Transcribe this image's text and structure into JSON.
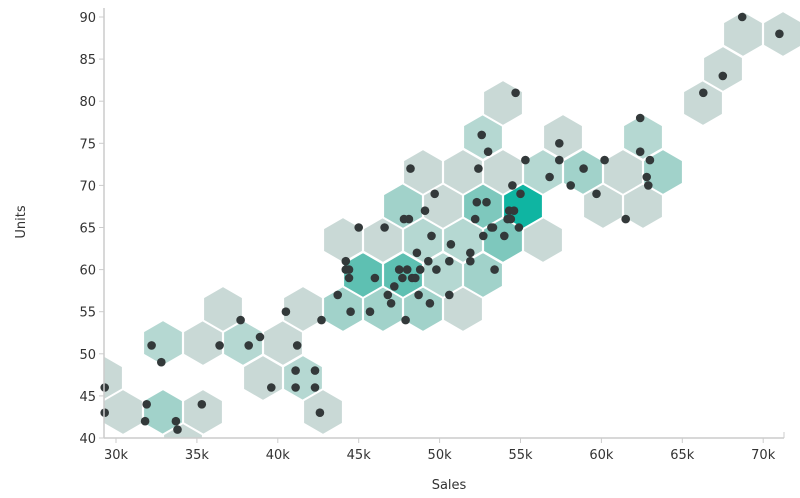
{
  "chart_data": {
    "type": "hexbin",
    "title": "",
    "xlabel": "Sales",
    "ylabel": "Units",
    "xlim": [
      29200,
      71300
    ],
    "ylim": [
      40,
      91
    ],
    "x_ticks": [
      30000,
      35000,
      40000,
      45000,
      50000,
      55000,
      60000,
      65000,
      70000
    ],
    "x_tick_labels": [
      "30k",
      "35k",
      "40k",
      "45k",
      "50k",
      "55k",
      "60k",
      "65k",
      "70k"
    ],
    "y_ticks": [
      40,
      45,
      50,
      55,
      60,
      65,
      70,
      75,
      80,
      85,
      90
    ],
    "y_tick_labels": [
      "40",
      "45",
      "50",
      "55",
      "60",
      "65",
      "70",
      "75",
      "80",
      "85",
      "90"
    ],
    "grid": false,
    "legend": null,
    "color_scale": [
      "#c9d9d6",
      "#b5d8d2",
      "#a1d2ca",
      "#7ec8bd",
      "#5ec0b2",
      "#0fb5a2"
    ],
    "point_color": "#33393a",
    "hex_pixel_radius": 23,
    "hexes": [
      {
        "cx": 103,
        "cy": 378,
        "level": 0
      },
      {
        "cx": 123,
        "cy": 412,
        "level": 0
      },
      {
        "cx": 163,
        "cy": 412,
        "level": 2
      },
      {
        "cx": 203,
        "cy": 412,
        "level": 0
      },
      {
        "cx": 183,
        "cy": 446,
        "level": 0
      },
      {
        "cx": 263,
        "cy": 378,
        "level": 0
      },
      {
        "cx": 303,
        "cy": 378,
        "level": 1
      },
      {
        "cx": 323,
        "cy": 412,
        "level": 0
      },
      {
        "cx": 163,
        "cy": 343,
        "level": 1
      },
      {
        "cx": 203,
        "cy": 343,
        "level": 0
      },
      {
        "cx": 243,
        "cy": 343,
        "level": 1
      },
      {
        "cx": 283,
        "cy": 343,
        "level": 0
      },
      {
        "cx": 223,
        "cy": 309,
        "level": 0
      },
      {
        "cx": 303,
        "cy": 309,
        "level": 0
      },
      {
        "cx": 343,
        "cy": 309,
        "level": 2
      },
      {
        "cx": 383,
        "cy": 309,
        "level": 2
      },
      {
        "cx": 423,
        "cy": 309,
        "level": 2
      },
      {
        "cx": 463,
        "cy": 309,
        "level": 0
      },
      {
        "cx": 363,
        "cy": 275,
        "level": 4
      },
      {
        "cx": 403,
        "cy": 275,
        "level": 4
      },
      {
        "cx": 443,
        "cy": 275,
        "level": 1
      },
      {
        "cx": 483,
        "cy": 275,
        "level": 2
      },
      {
        "cx": 343,
        "cy": 240,
        "level": 0
      },
      {
        "cx": 383,
        "cy": 240,
        "level": 0
      },
      {
        "cx": 423,
        "cy": 240,
        "level": 1
      },
      {
        "cx": 463,
        "cy": 240,
        "level": 1
      },
      {
        "cx": 503,
        "cy": 240,
        "level": 3
      },
      {
        "cx": 543,
        "cy": 240,
        "level": 0
      },
      {
        "cx": 403,
        "cy": 206,
        "level": 2
      },
      {
        "cx": 443,
        "cy": 206,
        "level": 0
      },
      {
        "cx": 483,
        "cy": 206,
        "level": 3
      },
      {
        "cx": 523,
        "cy": 206,
        "level": 5
      },
      {
        "cx": 603,
        "cy": 206,
        "level": 0
      },
      {
        "cx": 643,
        "cy": 206,
        "level": 0
      },
      {
        "cx": 423,
        "cy": 172,
        "level": 0
      },
      {
        "cx": 463,
        "cy": 172,
        "level": 0
      },
      {
        "cx": 503,
        "cy": 172,
        "level": 0
      },
      {
        "cx": 543,
        "cy": 172,
        "level": 1
      },
      {
        "cx": 583,
        "cy": 172,
        "level": 2
      },
      {
        "cx": 623,
        "cy": 172,
        "level": 0
      },
      {
        "cx": 663,
        "cy": 172,
        "level": 2
      },
      {
        "cx": 483,
        "cy": 137,
        "level": 1
      },
      {
        "cx": 563,
        "cy": 137,
        "level": 0
      },
      {
        "cx": 643,
        "cy": 137,
        "level": 1
      },
      {
        "cx": 503,
        "cy": 103,
        "level": 0
      },
      {
        "cx": 703,
        "cy": 103,
        "level": 0
      },
      {
        "cx": 723,
        "cy": 69,
        "level": 0
      },
      {
        "cx": 743,
        "cy": 34,
        "level": 0
      },
      {
        "cx": 783,
        "cy": 34,
        "level": 0
      }
    ],
    "points": [
      {
        "x": 29300,
        "y": 46
      },
      {
        "x": 29300,
        "y": 43
      },
      {
        "x": 31900,
        "y": 44
      },
      {
        "x": 31800,
        "y": 42
      },
      {
        "x": 33700,
        "y": 42
      },
      {
        "x": 33800,
        "y": 41
      },
      {
        "x": 35300,
        "y": 44
      },
      {
        "x": 32200,
        "y": 51
      },
      {
        "x": 32800,
        "y": 49
      },
      {
        "x": 36400,
        "y": 51
      },
      {
        "x": 37700,
        "y": 54
      },
      {
        "x": 38200,
        "y": 51
      },
      {
        "x": 38900,
        "y": 52
      },
      {
        "x": 39600,
        "y": 46
      },
      {
        "x": 41100,
        "y": 46
      },
      {
        "x": 42300,
        "y": 46
      },
      {
        "x": 42600,
        "y": 43
      },
      {
        "x": 40500,
        "y": 55
      },
      {
        "x": 41200,
        "y": 51
      },
      {
        "x": 41100,
        "y": 48
      },
      {
        "x": 42300,
        "y": 48
      },
      {
        "x": 42700,
        "y": 54
      },
      {
        "x": 43700,
        "y": 57
      },
      {
        "x": 44200,
        "y": 61
      },
      {
        "x": 44200,
        "y": 60
      },
      {
        "x": 44400,
        "y": 59
      },
      {
        "x": 44400,
        "y": 60
      },
      {
        "x": 44500,
        "y": 55
      },
      {
        "x": 45000,
        "y": 65
      },
      {
        "x": 45700,
        "y": 55
      },
      {
        "x": 46000,
        "y": 59
      },
      {
        "x": 46600,
        "y": 65
      },
      {
        "x": 46800,
        "y": 57
      },
      {
        "x": 47000,
        "y": 56
      },
      {
        "x": 47200,
        "y": 58
      },
      {
        "x": 47500,
        "y": 60
      },
      {
        "x": 47700,
        "y": 59
      },
      {
        "x": 47800,
        "y": 66
      },
      {
        "x": 47900,
        "y": 54
      },
      {
        "x": 48000,
        "y": 60
      },
      {
        "x": 48100,
        "y": 66
      },
      {
        "x": 48200,
        "y": 72
      },
      {
        "x": 48300,
        "y": 59
      },
      {
        "x": 48500,
        "y": 59
      },
      {
        "x": 48600,
        "y": 62
      },
      {
        "x": 48700,
        "y": 57
      },
      {
        "x": 48800,
        "y": 60
      },
      {
        "x": 49100,
        "y": 67
      },
      {
        "x": 49300,
        "y": 61
      },
      {
        "x": 49400,
        "y": 56
      },
      {
        "x": 49500,
        "y": 64
      },
      {
        "x": 49700,
        "y": 69
      },
      {
        "x": 49800,
        "y": 60
      },
      {
        "x": 50600,
        "y": 61
      },
      {
        "x": 50600,
        "y": 57
      },
      {
        "x": 50700,
        "y": 63
      },
      {
        "x": 51900,
        "y": 62
      },
      {
        "x": 51900,
        "y": 61
      },
      {
        "x": 52200,
        "y": 66
      },
      {
        "x": 52300,
        "y": 68
      },
      {
        "x": 52400,
        "y": 72
      },
      {
        "x": 52600,
        "y": 76
      },
      {
        "x": 52700,
        "y": 64
      },
      {
        "x": 52900,
        "y": 68
      },
      {
        "x": 53000,
        "y": 74
      },
      {
        "x": 53200,
        "y": 65
      },
      {
        "x": 53300,
        "y": 65
      },
      {
        "x": 53400,
        "y": 60
      },
      {
        "x": 54000,
        "y": 64
      },
      {
        "x": 54200,
        "y": 66
      },
      {
        "x": 54300,
        "y": 67
      },
      {
        "x": 54400,
        "y": 66
      },
      {
        "x": 54500,
        "y": 70
      },
      {
        "x": 54600,
        "y": 67
      },
      {
        "x": 54700,
        "y": 81
      },
      {
        "x": 54900,
        "y": 65
      },
      {
        "x": 55000,
        "y": 69
      },
      {
        "x": 55300,
        "y": 73
      },
      {
        "x": 56800,
        "y": 71
      },
      {
        "x": 57400,
        "y": 75
      },
      {
        "x": 57400,
        "y": 73
      },
      {
        "x": 58100,
        "y": 70
      },
      {
        "x": 58900,
        "y": 72
      },
      {
        "x": 59700,
        "y": 69
      },
      {
        "x": 60200,
        "y": 73
      },
      {
        "x": 61500,
        "y": 66
      },
      {
        "x": 62400,
        "y": 78
      },
      {
        "x": 62400,
        "y": 74
      },
      {
        "x": 62800,
        "y": 71
      },
      {
        "x": 62900,
        "y": 70
      },
      {
        "x": 63000,
        "y": 73
      },
      {
        "x": 66300,
        "y": 81
      },
      {
        "x": 67500,
        "y": 83
      },
      {
        "x": 68700,
        "y": 90
      },
      {
        "x": 71000,
        "y": 88
      }
    ]
  }
}
